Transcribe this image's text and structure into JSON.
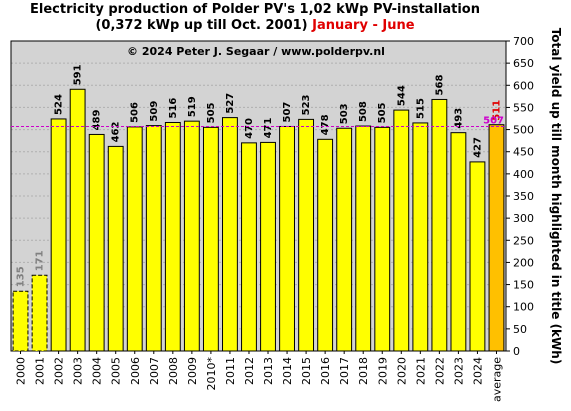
{
  "title": {
    "line1": "Electricity production  of Polder  PV's  1,02 kWp PV-installation",
    "line2": "(0,372 kWp up till Oct. 2001)",
    "highlight": "January - June"
  },
  "chart_data": {
    "type": "bar",
    "categories": [
      "2000",
      "2001",
      "2002",
      "2003",
      "2004",
      "2005",
      "2006",
      "2007",
      "2008",
      "2009",
      "2010*",
      "2011",
      "2012",
      "2013",
      "2014",
      "2015",
      "2016",
      "2017",
      "2018",
      "2019",
      "2020",
      "2021",
      "2022",
      "2023",
      "2024",
      "average"
    ],
    "values": [
      135,
      171,
      524,
      591,
      489,
      462,
      506,
      509,
      516,
      519,
      505,
      527,
      470,
      471,
      507,
      523,
      478,
      503,
      508,
      505,
      544,
      515,
      568,
      493,
      427,
      511
    ],
    "ylim": [
      0,
      700
    ],
    "yticks": [
      "0",
      "50",
      "100",
      "150",
      "200",
      "250",
      "300",
      "350",
      "400",
      "450",
      "500",
      "550",
      "600",
      "650",
      "700"
    ],
    "ylabel": "Total yield up till month highlighted in title (kWh)",
    "xlabel": "",
    "credit": "© 2024 Peter J. Segaar / www.polderpv.nl",
    "reference_line": {
      "value": 507,
      "label": "507",
      "color": "#cc00cc"
    },
    "grid": true,
    "colors": {
      "bar": "#ffff00",
      "bar_dashed": "#ffff00",
      "average_bar": "#ffc000",
      "plot_bg": "#d3d3d3",
      "label_default": "#000000",
      "label_muted": "#808080",
      "label_average": "#e00000"
    },
    "dashed_bars": [
      "2000",
      "2001"
    ]
  }
}
